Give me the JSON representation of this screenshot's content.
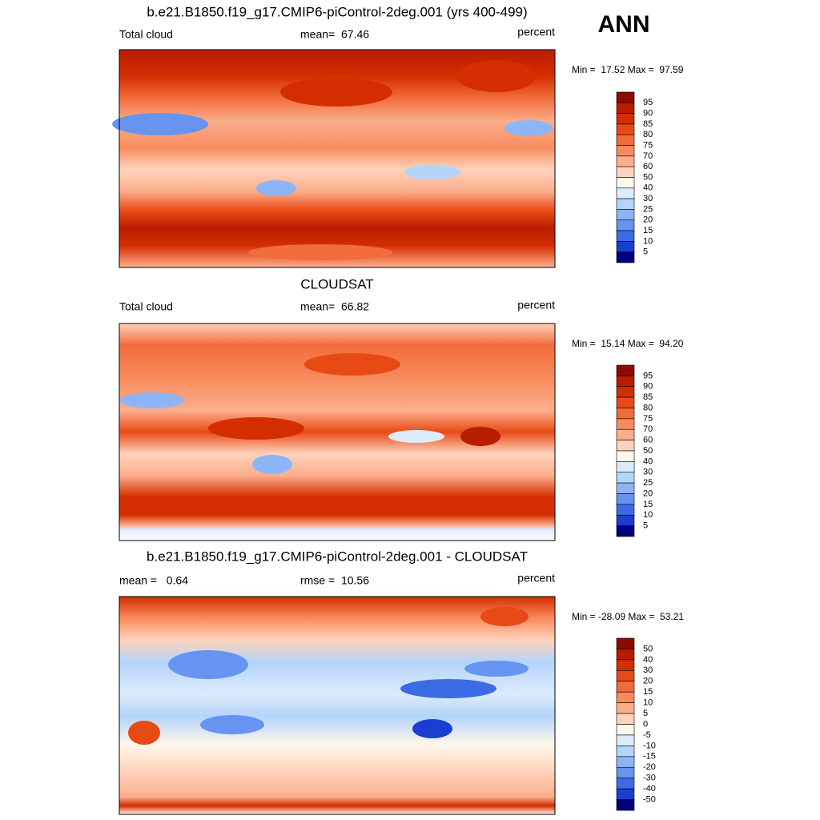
{
  "figure_label": "ANN",
  "panels": [
    {
      "title": "b.e21.B1850.f19_g17.CMIP6-piControl-2deg.001 (yrs 400-499)",
      "left_label": "Total cloud",
      "center_label": "mean=  67.46",
      "right_label": "percent",
      "min_max": "Min =  17.52 Max =  97.59",
      "colorbar": {
        "levels": [
          95,
          90,
          85,
          80,
          75,
          70,
          60,
          50,
          40,
          30,
          25,
          20,
          15,
          10,
          5
        ],
        "colors": [
          "#8c0a00",
          "#b81d00",
          "#d42d00",
          "#e84a16",
          "#f26b3a",
          "#f88b5e",
          "#fcae8c",
          "#fed3bc",
          "#fff7ea",
          "#dcebfb",
          "#b4d4fa",
          "#8cb5f7",
          "#6694f0",
          "#3c6be6",
          "#1a3fd0",
          "#00007a"
        ]
      }
    },
    {
      "title": "CLOUDSAT",
      "left_label": "Total cloud",
      "center_label": "mean=  66.82",
      "right_label": "percent",
      "min_max": "Min =  15.14 Max =  94.20",
      "colorbar": {
        "levels": [
          95,
          90,
          85,
          80,
          75,
          70,
          60,
          50,
          40,
          30,
          25,
          20,
          15,
          10,
          5
        ],
        "colors": [
          "#8c0a00",
          "#b81d00",
          "#d42d00",
          "#e84a16",
          "#f26b3a",
          "#f88b5e",
          "#fcae8c",
          "#fed3bc",
          "#fff7ea",
          "#dcebfb",
          "#b4d4fa",
          "#8cb5f7",
          "#6694f0",
          "#3c6be6",
          "#1a3fd0",
          "#00007a"
        ]
      }
    },
    {
      "title": "b.e21.B1850.f19_g17.CMIP6-piControl-2deg.001 - CLOUDSAT",
      "left_label": "mean =   0.64",
      "center_label": "rmse =  10.56",
      "right_label": "percent",
      "min_max": "Min = -28.09 Max =  53.21",
      "colorbar": {
        "levels": [
          50,
          40,
          30,
          20,
          15,
          10,
          5,
          0,
          -5,
          -10,
          -15,
          -20,
          -30,
          -40,
          -50
        ],
        "colors": [
          "#8c0a00",
          "#b81d00",
          "#d42d00",
          "#e84a16",
          "#f26b3a",
          "#f88b5e",
          "#fcae8c",
          "#fed3bc",
          "#fff7ea",
          "#dcebfb",
          "#b4d4fa",
          "#8cb5f7",
          "#6694f0",
          "#3c6be6",
          "#1a3fd0",
          "#00007a"
        ]
      }
    }
  ]
}
